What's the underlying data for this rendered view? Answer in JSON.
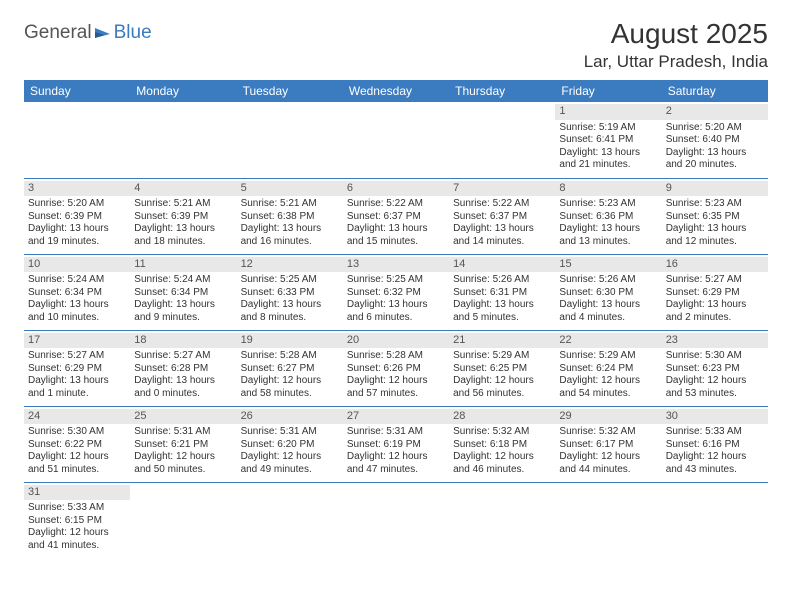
{
  "logo": {
    "part1": "General",
    "part2": "Blue"
  },
  "title": "August 2025",
  "location": "Lar, Uttar Pradesh, India",
  "headers": [
    "Sunday",
    "Monday",
    "Tuesday",
    "Wednesday",
    "Thursday",
    "Friday",
    "Saturday"
  ],
  "style": {
    "header_bg": "#3b7bbf",
    "header_color": "#ffffff",
    "daynum_bg": "#e8e8e8",
    "row_border": "#3b7bbf",
    "page_bg": "#ffffff",
    "text_color": "#333333",
    "header_fontsize": 12,
    "cell_fontsize": 10,
    "title_fontsize": 28,
    "location_fontsize": 17
  },
  "weeks": [
    [
      null,
      null,
      null,
      null,
      null,
      {
        "num": "1",
        "sunrise": "Sunrise: 5:19 AM",
        "sunset": "Sunset: 6:41 PM",
        "daylight": "Daylight: 13 hours and 21 minutes."
      },
      {
        "num": "2",
        "sunrise": "Sunrise: 5:20 AM",
        "sunset": "Sunset: 6:40 PM",
        "daylight": "Daylight: 13 hours and 20 minutes."
      }
    ],
    [
      {
        "num": "3",
        "sunrise": "Sunrise: 5:20 AM",
        "sunset": "Sunset: 6:39 PM",
        "daylight": "Daylight: 13 hours and 19 minutes."
      },
      {
        "num": "4",
        "sunrise": "Sunrise: 5:21 AM",
        "sunset": "Sunset: 6:39 PM",
        "daylight": "Daylight: 13 hours and 18 minutes."
      },
      {
        "num": "5",
        "sunrise": "Sunrise: 5:21 AM",
        "sunset": "Sunset: 6:38 PM",
        "daylight": "Daylight: 13 hours and 16 minutes."
      },
      {
        "num": "6",
        "sunrise": "Sunrise: 5:22 AM",
        "sunset": "Sunset: 6:37 PM",
        "daylight": "Daylight: 13 hours and 15 minutes."
      },
      {
        "num": "7",
        "sunrise": "Sunrise: 5:22 AM",
        "sunset": "Sunset: 6:37 PM",
        "daylight": "Daylight: 13 hours and 14 minutes."
      },
      {
        "num": "8",
        "sunrise": "Sunrise: 5:23 AM",
        "sunset": "Sunset: 6:36 PM",
        "daylight": "Daylight: 13 hours and 13 minutes."
      },
      {
        "num": "9",
        "sunrise": "Sunrise: 5:23 AM",
        "sunset": "Sunset: 6:35 PM",
        "daylight": "Daylight: 13 hours and 12 minutes."
      }
    ],
    [
      {
        "num": "10",
        "sunrise": "Sunrise: 5:24 AM",
        "sunset": "Sunset: 6:34 PM",
        "daylight": "Daylight: 13 hours and 10 minutes."
      },
      {
        "num": "11",
        "sunrise": "Sunrise: 5:24 AM",
        "sunset": "Sunset: 6:34 PM",
        "daylight": "Daylight: 13 hours and 9 minutes."
      },
      {
        "num": "12",
        "sunrise": "Sunrise: 5:25 AM",
        "sunset": "Sunset: 6:33 PM",
        "daylight": "Daylight: 13 hours and 8 minutes."
      },
      {
        "num": "13",
        "sunrise": "Sunrise: 5:25 AM",
        "sunset": "Sunset: 6:32 PM",
        "daylight": "Daylight: 13 hours and 6 minutes."
      },
      {
        "num": "14",
        "sunrise": "Sunrise: 5:26 AM",
        "sunset": "Sunset: 6:31 PM",
        "daylight": "Daylight: 13 hours and 5 minutes."
      },
      {
        "num": "15",
        "sunrise": "Sunrise: 5:26 AM",
        "sunset": "Sunset: 6:30 PM",
        "daylight": "Daylight: 13 hours and 4 minutes."
      },
      {
        "num": "16",
        "sunrise": "Sunrise: 5:27 AM",
        "sunset": "Sunset: 6:29 PM",
        "daylight": "Daylight: 13 hours and 2 minutes."
      }
    ],
    [
      {
        "num": "17",
        "sunrise": "Sunrise: 5:27 AM",
        "sunset": "Sunset: 6:29 PM",
        "daylight": "Daylight: 13 hours and 1 minute."
      },
      {
        "num": "18",
        "sunrise": "Sunrise: 5:27 AM",
        "sunset": "Sunset: 6:28 PM",
        "daylight": "Daylight: 13 hours and 0 minutes."
      },
      {
        "num": "19",
        "sunrise": "Sunrise: 5:28 AM",
        "sunset": "Sunset: 6:27 PM",
        "daylight": "Daylight: 12 hours and 58 minutes."
      },
      {
        "num": "20",
        "sunrise": "Sunrise: 5:28 AM",
        "sunset": "Sunset: 6:26 PM",
        "daylight": "Daylight: 12 hours and 57 minutes."
      },
      {
        "num": "21",
        "sunrise": "Sunrise: 5:29 AM",
        "sunset": "Sunset: 6:25 PM",
        "daylight": "Daylight: 12 hours and 56 minutes."
      },
      {
        "num": "22",
        "sunrise": "Sunrise: 5:29 AM",
        "sunset": "Sunset: 6:24 PM",
        "daylight": "Daylight: 12 hours and 54 minutes."
      },
      {
        "num": "23",
        "sunrise": "Sunrise: 5:30 AM",
        "sunset": "Sunset: 6:23 PM",
        "daylight": "Daylight: 12 hours and 53 minutes."
      }
    ],
    [
      {
        "num": "24",
        "sunrise": "Sunrise: 5:30 AM",
        "sunset": "Sunset: 6:22 PM",
        "daylight": "Daylight: 12 hours and 51 minutes."
      },
      {
        "num": "25",
        "sunrise": "Sunrise: 5:31 AM",
        "sunset": "Sunset: 6:21 PM",
        "daylight": "Daylight: 12 hours and 50 minutes."
      },
      {
        "num": "26",
        "sunrise": "Sunrise: 5:31 AM",
        "sunset": "Sunset: 6:20 PM",
        "daylight": "Daylight: 12 hours and 49 minutes."
      },
      {
        "num": "27",
        "sunrise": "Sunrise: 5:31 AM",
        "sunset": "Sunset: 6:19 PM",
        "daylight": "Daylight: 12 hours and 47 minutes."
      },
      {
        "num": "28",
        "sunrise": "Sunrise: 5:32 AM",
        "sunset": "Sunset: 6:18 PM",
        "daylight": "Daylight: 12 hours and 46 minutes."
      },
      {
        "num": "29",
        "sunrise": "Sunrise: 5:32 AM",
        "sunset": "Sunset: 6:17 PM",
        "daylight": "Daylight: 12 hours and 44 minutes."
      },
      {
        "num": "30",
        "sunrise": "Sunrise: 5:33 AM",
        "sunset": "Sunset: 6:16 PM",
        "daylight": "Daylight: 12 hours and 43 minutes."
      }
    ],
    [
      {
        "num": "31",
        "sunrise": "Sunrise: 5:33 AM",
        "sunset": "Sunset: 6:15 PM",
        "daylight": "Daylight: 12 hours and 41 minutes."
      },
      null,
      null,
      null,
      null,
      null,
      null
    ]
  ]
}
